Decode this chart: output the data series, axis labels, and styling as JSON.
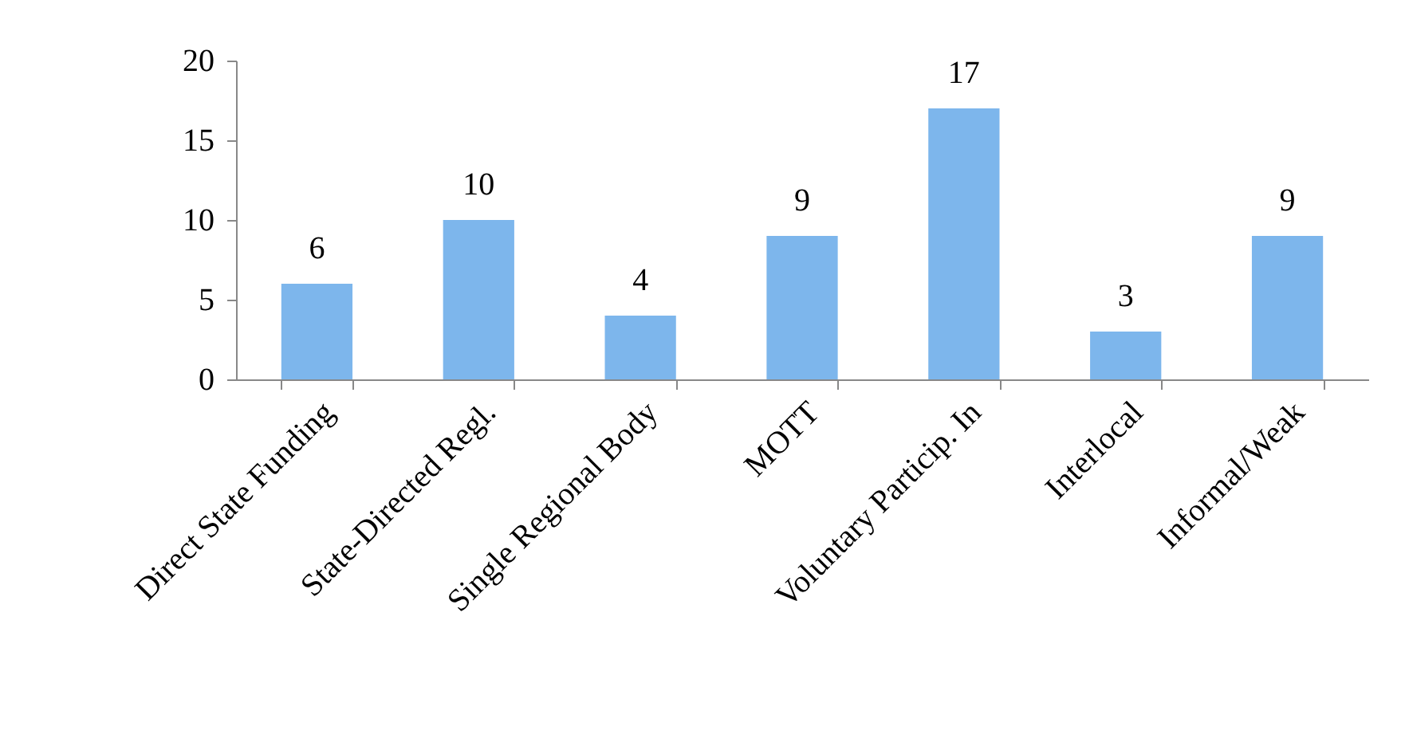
{
  "chart_data": {
    "type": "bar",
    "categories": [
      "Direct State Funding",
      "State-Directed Regl.",
      "Single Regional Body",
      "MOTT",
      "Voluntary Particip. In",
      "Interlocal",
      "Informal/Weak"
    ],
    "values": [
      6,
      10,
      4,
      9,
      17,
      3,
      9
    ],
    "color": "#7db6ec",
    "ylim": [
      0,
      20
    ],
    "yticks": [
      0,
      5,
      10,
      15,
      20
    ],
    "grid": false,
    "data_labels": true
  }
}
